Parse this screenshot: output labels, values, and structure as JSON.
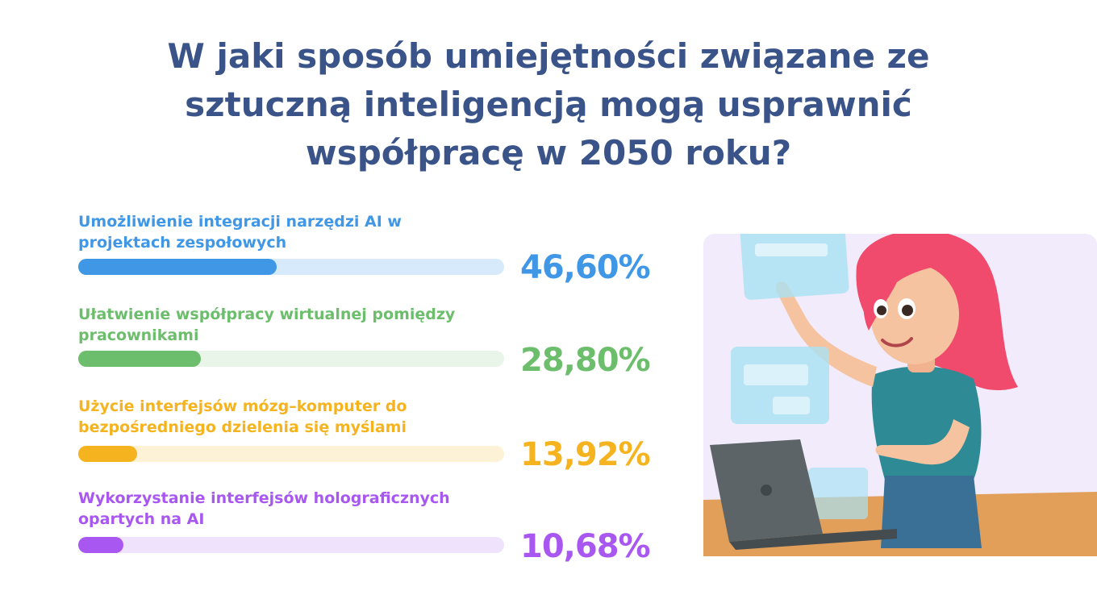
{
  "chart_data": {
    "type": "bar",
    "orientation": "horizontal",
    "title": "W jaki sposób umiejętności związane ze sztuczną inteligencją mogą usprawnić współpracę w 2050 roku?",
    "categories": [
      "Umożliwienie integracji narzędzi AI w projektach zespołowych",
      "Ułatwienie współpracy wirtualnej pomiędzy pracownikami",
      "Użycie interfejsów mózg–komputer do bezpośredniego dzielenia się myślami",
      "Wykorzystanie interfejsów holograficznych opartych na AI"
    ],
    "values": [
      46.6,
      28.8,
      13.92,
      10.68
    ],
    "value_labels": [
      "46,60%",
      "28,80%",
      "13,92%",
      "10,68%"
    ],
    "xlim": [
      0,
      100
    ],
    "unit": "%",
    "colors": [
      "#3f97e6",
      "#6cbd6c",
      "#f5b41f",
      "#a857f0"
    ],
    "track_colors": [
      "#d7eafb",
      "#eaf5ea",
      "#fdf1d6",
      "#efe2fc"
    ],
    "grid": false,
    "legend": "none"
  },
  "illustration": {
    "icon": "woman-using-holographic-interface-illustration",
    "colors": {
      "background": "#f1ebfb",
      "hair": "#f04a6c",
      "shirt": "#2e8a94",
      "laptop": "#5c6468",
      "desk": "#e29f5a",
      "panel": "#a9e2f3"
    }
  }
}
